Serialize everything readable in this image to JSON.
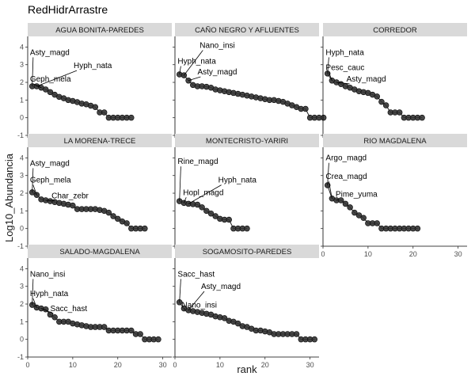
{
  "chart_data": {
    "type": "scatter",
    "title": "RedHidrArrastre",
    "xlabel": "rank",
    "ylabel": "Log10_Abundancia",
    "xlim": [
      0,
      32
    ],
    "ylim": [
      -1,
      4.6
    ],
    "x_ticks": [
      0,
      10,
      20,
      30
    ],
    "y_ticks": [
      -1,
      0,
      1,
      2,
      3,
      4
    ],
    "grid": false,
    "legend": "none",
    "point_color": "#333333",
    "strip_color": "#d9d9d9",
    "panels": [
      {
        "name": "AGUA BONITA-PAREDES",
        "values": [
          1.78,
          1.78,
          1.7,
          1.6,
          1.45,
          1.3,
          1.18,
          1.1,
          1.0,
          0.95,
          0.88,
          0.8,
          0.76,
          0.68,
          0.6,
          0.3,
          0.3,
          0.0,
          0.0,
          0.0,
          0.0,
          0.0,
          0.0
        ],
        "labels": [
          {
            "text": "Asty_magd",
            "rank": 1,
            "label_x": 0.5,
            "label_y": 3.55
          },
          {
            "text": "Hyph_nata",
            "rank": 2,
            "label_x": 10.2,
            "label_y": 2.8
          },
          {
            "text": "Geph_mela",
            "rank": 3,
            "label_x": 0.5,
            "label_y": 2.05
          }
        ]
      },
      {
        "name": "CAÑO NEGRO Y AFLUENTES",
        "values": [
          2.45,
          2.4,
          2.1,
          1.85,
          1.78,
          1.78,
          1.75,
          1.7,
          1.6,
          1.55,
          1.5,
          1.45,
          1.4,
          1.35,
          1.3,
          1.25,
          1.2,
          1.15,
          1.1,
          1.05,
          1.0,
          1.0,
          0.95,
          0.9,
          0.8,
          0.7,
          0.6,
          0.5,
          0.5,
          0.0,
          0.0,
          0.0,
          0.0
        ],
        "labels": [
          {
            "text": "Nano_insi",
            "rank": 2,
            "label_x": 5.5,
            "label_y": 3.95
          },
          {
            "text": "Hyph_nata",
            "rank": 1,
            "label_x": 0.6,
            "label_y": 3.05
          },
          {
            "text": "Asty_magd",
            "rank": 3,
            "label_x": 5.0,
            "label_y": 2.45
          }
        ]
      },
      {
        "name": "CORREDOR",
        "values": [
          2.5,
          2.1,
          2.0,
          1.9,
          1.78,
          1.7,
          1.6,
          1.5,
          1.45,
          1.4,
          1.3,
          1.2,
          0.9,
          0.7,
          0.3,
          0.3,
          0.3,
          0.0,
          0.0,
          0.0,
          0.0,
          0.0
        ],
        "labels": [
          {
            "text": "Hyph_nata",
            "rank": 1,
            "label_x": 0.6,
            "label_y": 3.55
          },
          {
            "text": "Pesc_cauc",
            "rank": 2,
            "label_x": 0.6,
            "label_y": 2.7
          },
          {
            "text": "Asty_magd",
            "rank": 3,
            "label_x": 5.2,
            "label_y": 2.05
          }
        ]
      },
      {
        "name": "LA MORENA-TRECE",
        "values": [
          2.05,
          1.9,
          1.65,
          1.6,
          1.55,
          1.5,
          1.45,
          1.4,
          1.35,
          1.3,
          1.1,
          1.1,
          1.1,
          1.1,
          1.1,
          1.05,
          1.0,
          0.9,
          0.7,
          0.55,
          0.4,
          0.3,
          0.0,
          0.0,
          0.0,
          0.0
        ],
        "labels": [
          {
            "text": "Asty_magd",
            "rank": 1,
            "label_x": 0.5,
            "label_y": 3.55
          },
          {
            "text": "Geph_mela",
            "rank": 2,
            "label_x": 0.5,
            "label_y": 2.6
          },
          {
            "text": "Char_zebr",
            "rank": 4,
            "label_x": 5.3,
            "label_y": 1.7
          }
        ]
      },
      {
        "name": "MONTECRISTO-YARIRI",
        "values": [
          1.55,
          1.45,
          1.4,
          1.38,
          1.35,
          1.2,
          1.0,
          0.85,
          0.7,
          0.55,
          0.5,
          0.5,
          0.0,
          0.0,
          0.0,
          0.0
        ],
        "labels": [
          {
            "text": "Rine_magd",
            "rank": 1,
            "label_x": 0.6,
            "label_y": 3.65
          },
          {
            "text": "Hyph_nata",
            "rank": 3,
            "label_x": 9.6,
            "label_y": 2.6
          },
          {
            "text": "Hopl_magd",
            "rank": 2,
            "label_x": 1.8,
            "label_y": 1.9
          }
        ]
      },
      {
        "name": "RIO MAGDALENA",
        "values": [
          2.45,
          1.7,
          1.6,
          1.6,
          1.4,
          1.2,
          0.9,
          0.75,
          0.6,
          0.3,
          0.3,
          0.3,
          0.0,
          0.0,
          0.0,
          0.0,
          0.0,
          0.0,
          0.0,
          0.0,
          0.0
        ],
        "labels": [
          {
            "text": "Argo_magd",
            "rank": 1,
            "label_x": 0.6,
            "label_y": 3.85
          },
          {
            "text": "Crea_magd",
            "rank": 2,
            "label_x": 0.6,
            "label_y": 2.8
          },
          {
            "text": "Pime_yuma",
            "rank": 3,
            "label_x": 2.8,
            "label_y": 1.8
          }
        ]
      },
      {
        "name": "SALADO-MAGDALENA",
        "values": [
          1.95,
          1.8,
          1.75,
          1.7,
          1.4,
          1.25,
          1.0,
          1.0,
          1.0,
          0.9,
          0.85,
          0.8,
          0.75,
          0.7,
          0.7,
          0.7,
          0.7,
          0.5,
          0.5,
          0.5,
          0.5,
          0.5,
          0.5,
          0.3,
          0.3,
          0.0,
          0.0,
          0.0,
          0.0
        ],
        "labels": [
          {
            "text": "Nano_insi",
            "rank": 1,
            "label_x": 0.5,
            "label_y": 3.55
          },
          {
            "text": "Hyph_nata",
            "rank": 2,
            "label_x": 0.5,
            "label_y": 2.45
          },
          {
            "text": "Sacc_hast",
            "rank": 3,
            "label_x": 5.0,
            "label_y": 1.6
          }
        ]
      },
      {
        "name": "SOGAMOSITO-PAREDES",
        "values": [
          2.1,
          1.75,
          1.65,
          1.6,
          1.55,
          1.5,
          1.45,
          1.4,
          1.3,
          1.25,
          1.2,
          1.05,
          1.0,
          0.9,
          0.75,
          0.7,
          0.6,
          0.5,
          0.5,
          0.45,
          0.4,
          0.3,
          0.3,
          0.3,
          0.3,
          0.3,
          0.3,
          0.0,
          0.0,
          0.0,
          0.0
        ],
        "labels": [
          {
            "text": "Sacc_hast",
            "rank": 1,
            "label_x": 0.6,
            "label_y": 3.55
          },
          {
            "text": "Asty_magd",
            "rank": 3,
            "label_x": 5.8,
            "label_y": 2.85
          },
          {
            "text": "Nano_insi",
            "rank": 2,
            "label_x": 1.5,
            "label_y": 1.8
          }
        ]
      }
    ]
  }
}
